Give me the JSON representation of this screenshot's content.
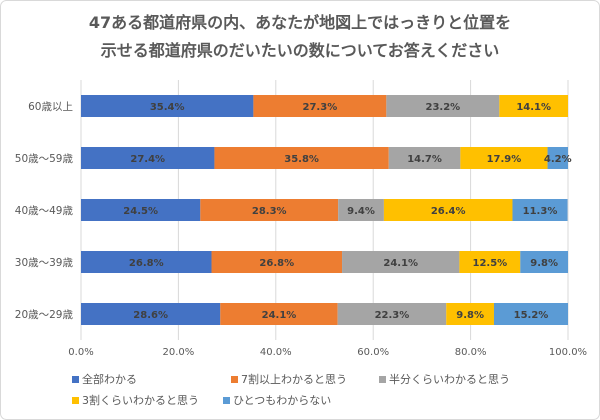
{
  "chart_data": {
    "type": "bar",
    "orientation": "horizontal",
    "stacked": true,
    "title_lines": [
      "47ある都道府県の内、あなたが地図上ではっきりと位置を",
      "示せる都道府県のだいたいの数についてお答えください"
    ],
    "categories": [
      "60歳以上",
      "50歳～59歳",
      "40歳～49歳",
      "30歳～39歳",
      "20歳～29歳"
    ],
    "series": [
      {
        "name": "全部わかる",
        "color": "#4472C4",
        "values": [
          35.4,
          27.4,
          24.5,
          26.8,
          28.6
        ]
      },
      {
        "name": "7割以上わかると思う",
        "color": "#ED7D31",
        "values": [
          27.3,
          35.8,
          28.3,
          26.8,
          24.1
        ]
      },
      {
        "name": "半分くらいわかると思う",
        "color": "#A5A5A5",
        "values": [
          23.2,
          14.7,
          9.4,
          24.1,
          22.3
        ]
      },
      {
        "name": "3割くらいわかると思う",
        "color": "#FFC000",
        "values": [
          14.1,
          17.9,
          26.4,
          12.5,
          9.8
        ]
      },
      {
        "name": "ひとつもわからない",
        "color": "#5B9BD5",
        "values": [
          0,
          4.2,
          11.3,
          9.8,
          15.2
        ]
      }
    ],
    "xlim": [
      0,
      100
    ],
    "xticks": [
      "0.0%",
      "20.0%",
      "40.0%",
      "60.0%",
      "80.0%",
      "100.0%"
    ],
    "grid": true,
    "legend": "bottom"
  }
}
